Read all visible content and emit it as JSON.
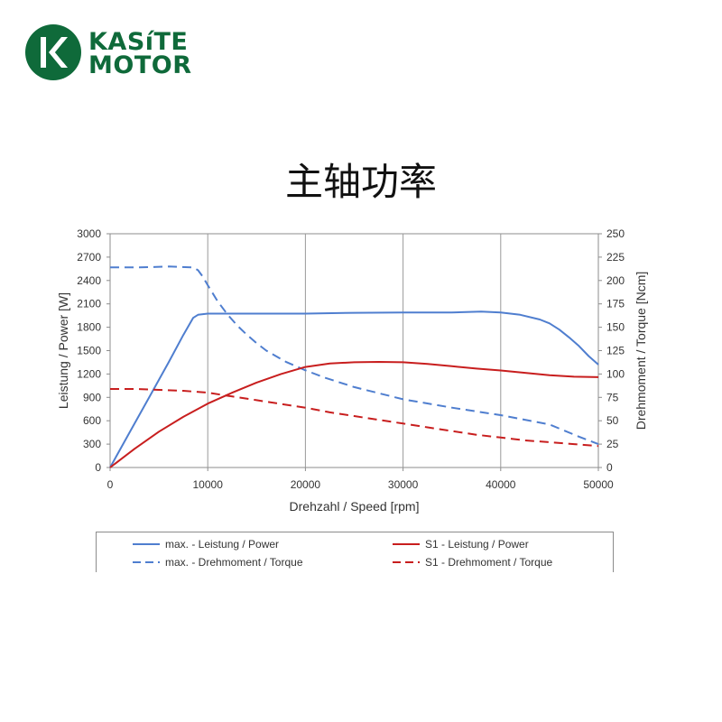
{
  "brand": {
    "line1": "KASíTE",
    "line2": "MOTOR",
    "color": "#0f6a3a"
  },
  "page_title": "主轴功率",
  "chart_data": {
    "type": "line",
    "xlabel": "Drehzahl / Speed [rpm]",
    "ylabel": "Leistung / Power [W]",
    "y2label": "Drehmoment / Torque [Ncm]",
    "xlim": [
      0,
      50000
    ],
    "ylim": [
      0,
      3000
    ],
    "y2lim": [
      0,
      250
    ],
    "x_ticks": [
      "0",
      "10000",
      "20000",
      "30000",
      "40000",
      "50000"
    ],
    "y_ticks": [
      "0",
      "300",
      "600",
      "900",
      "1200",
      "1500",
      "1800",
      "2100",
      "2400",
      "2700",
      "3000"
    ],
    "y2_ticks": [
      "0",
      "25",
      "50",
      "75",
      "100",
      "125",
      "150",
      "175",
      "200",
      "225",
      "250"
    ],
    "grid": "vertical",
    "legend_position": "bottom",
    "series": [
      {
        "name": "max. - Leistung / Power",
        "axis": "left",
        "color": "#4f7ecf",
        "dash": "solid",
        "x": [
          0,
          2000,
          4000,
          6000,
          7500,
          8500,
          9000,
          10000,
          15000,
          20000,
          25000,
          30000,
          35000,
          38000,
          40000,
          42000,
          44000,
          45000,
          46000,
          47000,
          48000,
          49000,
          50000
        ],
        "y": [
          0,
          450,
          900,
          1350,
          1700,
          1920,
          1960,
          1975,
          1975,
          1975,
          1985,
          1990,
          1990,
          2000,
          1990,
          1960,
          1900,
          1850,
          1770,
          1670,
          1560,
          1430,
          1320
        ]
      },
      {
        "name": "max. - Drehmoment / Torque",
        "axis": "right",
        "color": "#4f7ecf",
        "dash": "dashed",
        "x": [
          0,
          3000,
          6000,
          8500,
          9000,
          9500,
          10000,
          11000,
          12000,
          13000,
          14000,
          15000,
          16000,
          18000,
          20000,
          22000,
          25000,
          30000,
          35000,
          40000,
          45000,
          48000,
          50000
        ],
        "y": [
          214,
          214,
          215,
          214,
          211,
          204,
          195,
          178,
          164,
          152,
          142,
          133,
          125,
          113,
          104,
          96,
          86,
          73,
          64,
          56,
          46,
          33,
          25
        ]
      },
      {
        "name": "S1 - Leistung / Power",
        "axis": "left",
        "color": "#c81e1e",
        "dash": "solid",
        "x": [
          0,
          2500,
          5000,
          7500,
          10000,
          12500,
          15000,
          17500,
          20000,
          22500,
          25000,
          27500,
          30000,
          32500,
          35000,
          37500,
          40000,
          42500,
          45000,
          47500,
          50000
        ],
        "y": [
          0,
          240,
          460,
          650,
          820,
          960,
          1090,
          1200,
          1290,
          1335,
          1350,
          1355,
          1350,
          1330,
          1300,
          1270,
          1245,
          1215,
          1185,
          1165,
          1160
        ]
      },
      {
        "name": "S1 - Drehmoment / Torque",
        "axis": "right",
        "color": "#c81e1e",
        "dash": "dashed",
        "x": [
          0,
          2500,
          5000,
          7500,
          10000,
          12500,
          15000,
          17500,
          20000,
          22500,
          25000,
          27500,
          30000,
          32500,
          35000,
          37500,
          40000,
          42500,
          45000,
          47500,
          50000
        ],
        "y": [
          84,
          84,
          83,
          82,
          80,
          76,
          72,
          68,
          64,
          59,
          55,
          51,
          47,
          43,
          39,
          35,
          32,
          29,
          27,
          25,
          23
        ]
      }
    ]
  }
}
